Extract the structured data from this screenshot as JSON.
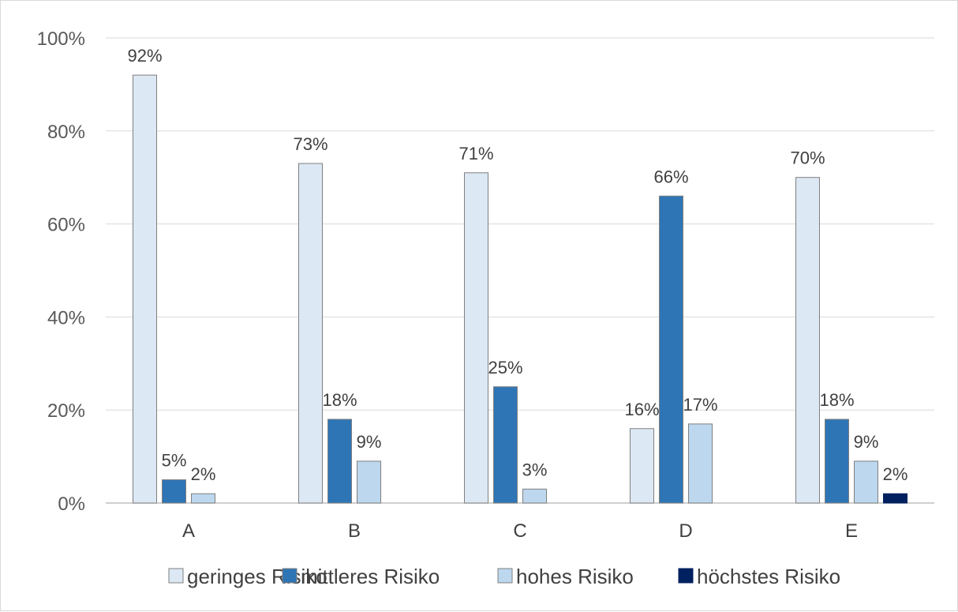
{
  "chart_data": {
    "type": "bar",
    "categories": [
      "A",
      "B",
      "C",
      "D",
      "E"
    ],
    "ylim": [
      0,
      100
    ],
    "yticks": [
      0,
      20,
      40,
      60,
      80,
      100
    ],
    "ytick_labels": [
      "0%",
      "20%",
      "40%",
      "60%",
      "80%",
      "100%"
    ],
    "grid": true,
    "legend_position": "bottom",
    "series": [
      {
        "name": "geringes Risiko",
        "color": "#dde8f5",
        "values": [
          92,
          73,
          71,
          16,
          70
        ],
        "labels": [
          "92%",
          "73%",
          "71%",
          "16%",
          "70%"
        ]
      },
      {
        "name": "mittleres Risiko",
        "color": "#2e75b6",
        "values": [
          5,
          18,
          25,
          66,
          18
        ],
        "labels": [
          "5%",
          "18%",
          "25%",
          "66%",
          "18%"
        ]
      },
      {
        "name": "hohes Risiko",
        "color": "#bdd7ee",
        "values": [
          2,
          9,
          3,
          17,
          9
        ],
        "labels": [
          "2%",
          "9%",
          "3%",
          "17%",
          "9%"
        ]
      },
      {
        "name": "höchstes Risiko",
        "color": "#002060",
        "values": [
          0,
          0,
          0,
          0,
          2
        ],
        "labels": [
          "",
          "",
          "",
          "",
          "2%"
        ]
      }
    ]
  }
}
